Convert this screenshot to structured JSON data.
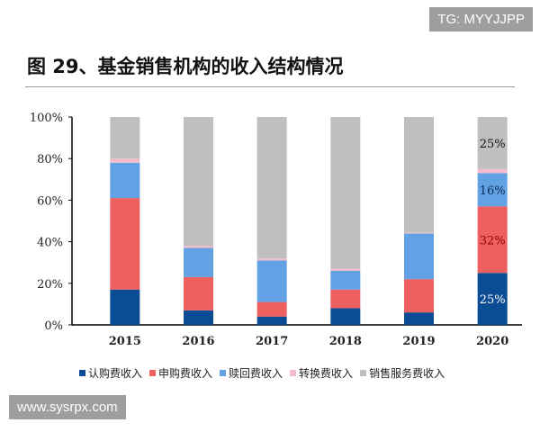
{
  "title": "图 29、基金销售机构的收入结构情况",
  "watermarks": [
    "TG: MYYJJPP",
    "www.sysrpx.com"
  ],
  "chart_data": {
    "type": "bar",
    "stacked": true,
    "categories": [
      "2015",
      "2016",
      "2017",
      "2018",
      "2019",
      "2020"
    ],
    "ylim": [
      0,
      100
    ],
    "yticks": [
      "0%",
      "20%",
      "40%",
      "60%",
      "80%",
      "100%"
    ],
    "legend_position": "bottom",
    "grid": false,
    "series": [
      {
        "name": "认购费收入",
        "color": "#0b4d94",
        "values": [
          17,
          7,
          4,
          8,
          6,
          25
        ]
      },
      {
        "name": "申购费收入",
        "color": "#ee5f5f",
        "values": [
          44,
          16,
          7,
          9,
          16,
          32
        ]
      },
      {
        "name": "赎回费收入",
        "color": "#62a1e3",
        "values": [
          17,
          14,
          20,
          9,
          22,
          16
        ]
      },
      {
        "name": "转换费收入",
        "color": "#f4bccb",
        "values": [
          2,
          1,
          1,
          1,
          0.5,
          2
        ]
      },
      {
        "name": "销售服务费收入",
        "color": "#bfbfbf",
        "values": [
          20,
          62,
          68,
          73,
          55.5,
          25
        ]
      }
    ],
    "data_labels": [
      {
        "category": "2020",
        "series": "认购费收入",
        "text": "25%",
        "color": "#ffffff"
      },
      {
        "category": "2020",
        "series": "申购费收入",
        "text": "32%",
        "color": "#8b0000"
      },
      {
        "category": "2020",
        "series": "赎回费收入",
        "text": "16%",
        "color": "#0b2a55"
      },
      {
        "category": "2020",
        "series": "销售服务费收入",
        "text": "25%",
        "color": "#111111"
      }
    ]
  }
}
